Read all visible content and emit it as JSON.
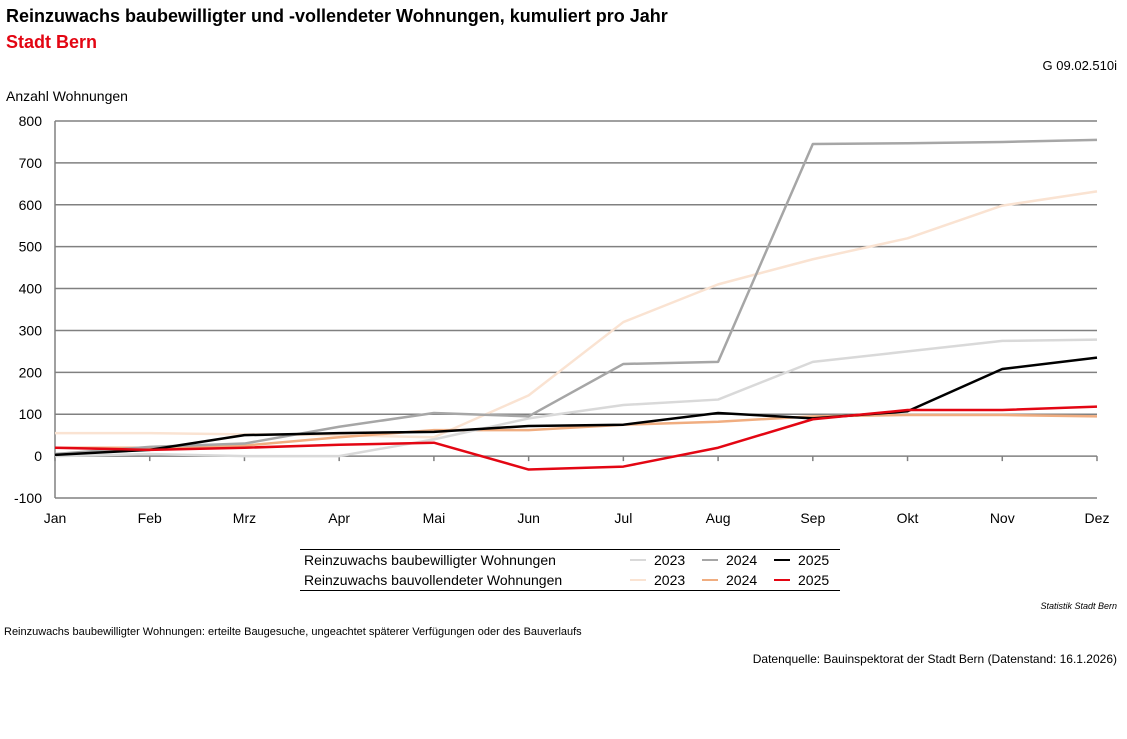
{
  "header": {
    "title": "Reinzuwachs baubewilligter und -vollendeter Wohnungen, kumuliert pro Jahr",
    "subtitle": "Stadt Bern",
    "code": "G 09.02.510i"
  },
  "footer": {
    "credit": "Statistik Stadt Bern",
    "note": "Reinzuwachs baubewilligter Wohnungen: erteilte Baugesuche, ungeachtet späterer Verfügungen oder des Bauverlaufs",
    "source": "Datenquelle: Bauinspektorat der Stadt Bern (Datenstand: 16.1.2026)"
  },
  "chart_data": {
    "type": "line",
    "ylabel": "Anzahl Wohnungen",
    "ylim": [
      -100,
      800
    ],
    "yticks": [
      -100,
      0,
      100,
      200,
      300,
      400,
      500,
      600,
      700,
      800
    ],
    "grid": true,
    "legend_position": "bottom",
    "categories": [
      "Jan",
      "Feb",
      "Mrz",
      "Apr",
      "Mai",
      "Jun",
      "Jul",
      "Aug",
      "Sep",
      "Okt",
      "Nov",
      "Dez"
    ],
    "groups": [
      {
        "label": "Reinzuwachs baubewilligter Wohnungen"
      },
      {
        "label": "Reinzuwachs bauvollendeter Wohnungen"
      }
    ],
    "series": [
      {
        "group": 1,
        "name": "2023",
        "color": "#fae3d2",
        "values": [
          55,
          55,
          52,
          50,
          45,
          145,
          320,
          410,
          470,
          520,
          598,
          632
        ]
      },
      {
        "group": 1,
        "name": "2024",
        "color": "#f0ad80",
        "values": [
          20,
          20,
          25,
          45,
          62,
          62,
          75,
          82,
          95,
          98,
          98,
          95
        ]
      },
      {
        "group": 0,
        "name": "2023",
        "color": "#d9d9d9",
        "values": [
          0,
          5,
          0,
          0,
          40,
          90,
          122,
          135,
          225,
          250,
          275,
          278
        ]
      },
      {
        "group": 0,
        "name": "2024",
        "color": "#a6a6a6",
        "values": [
          5,
          22,
          30,
          70,
          103,
          95,
          220,
          225,
          745,
          747,
          750,
          755
        ]
      },
      {
        "group": 0,
        "name": "2025",
        "color": "#000000",
        "values": [
          3,
          15,
          50,
          55,
          58,
          72,
          75,
          103,
          90,
          107,
          208,
          235
        ]
      },
      {
        "group": 1,
        "name": "2025",
        "color": "#e30613",
        "values": [
          20,
          15,
          20,
          27,
          32,
          -32,
          -25,
          20,
          88,
          110,
          110,
          118
        ]
      }
    ]
  }
}
